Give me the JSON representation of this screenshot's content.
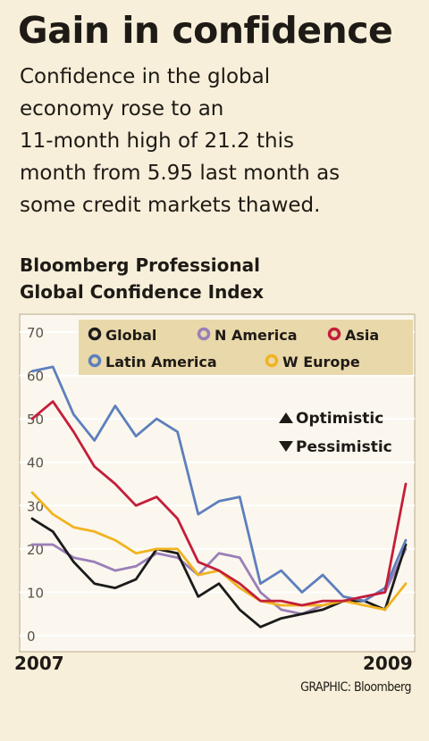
{
  "header": {
    "title": "Gain in confidence",
    "subtitle_lines": [
      "Confidence in the global",
      "economy rose to an",
      "11-month high of 21.2 this",
      "month from 5.95 last month as",
      "some credit markets thawed."
    ],
    "chart_title_lines": [
      "Bloomberg Professional",
      "Global Confidence Index"
    ]
  },
  "source": "GRAPHIC: Bloomberg",
  "colors": {
    "background": "#f7efd9",
    "plot_background": "#fbf7ee",
    "legend_background": "#e9d8aa",
    "grid": "#ffffff"
  },
  "annotations": {
    "optimistic": "Optimistic",
    "pessimistic": "Pessimistic"
  },
  "chart_data": {
    "type": "line",
    "title": "Bloomberg Professional Global Confidence Index",
    "xlabel": "",
    "ylabel": "",
    "ylim": [
      0,
      70
    ],
    "yticks": [
      0,
      10,
      20,
      30,
      40,
      50,
      60,
      70
    ],
    "x_tick_labels": [
      "2007",
      "2009"
    ],
    "grid": "horizontal",
    "legend_position": "top",
    "series": [
      {
        "name": "Global",
        "color": "#1b1b1b",
        "values": [
          27,
          24,
          17,
          12,
          11,
          13,
          20,
          19,
          9,
          12,
          6,
          2,
          4,
          5,
          6,
          8,
          8,
          6,
          21
        ]
      },
      {
        "name": "N America",
        "color": "#9a7fb8",
        "values": [
          21,
          21,
          18,
          17,
          15,
          16,
          19,
          18,
          14,
          19,
          18,
          10,
          6,
          5,
          7,
          8,
          9,
          10,
          20
        ]
      },
      {
        "name": "Asia",
        "color": "#c41e3a",
        "values": [
          50,
          54,
          47,
          39,
          35,
          30,
          32,
          27,
          17,
          15,
          12,
          8,
          8,
          7,
          8,
          8,
          9,
          10,
          35
        ]
      },
      {
        "name": "Latin America",
        "color": "#5d7fbd",
        "values": [
          61,
          62,
          51,
          45,
          53,
          46,
          50,
          47,
          28,
          31,
          32,
          12,
          15,
          10,
          14,
          9,
          8,
          11,
          22
        ]
      },
      {
        "name": "W Europe",
        "color": "#f1b320",
        "values": [
          33,
          28,
          25,
          24,
          22,
          19,
          20,
          20,
          14,
          15,
          11,
          8,
          7,
          7,
          7,
          8,
          7,
          6,
          12
        ]
      }
    ]
  }
}
